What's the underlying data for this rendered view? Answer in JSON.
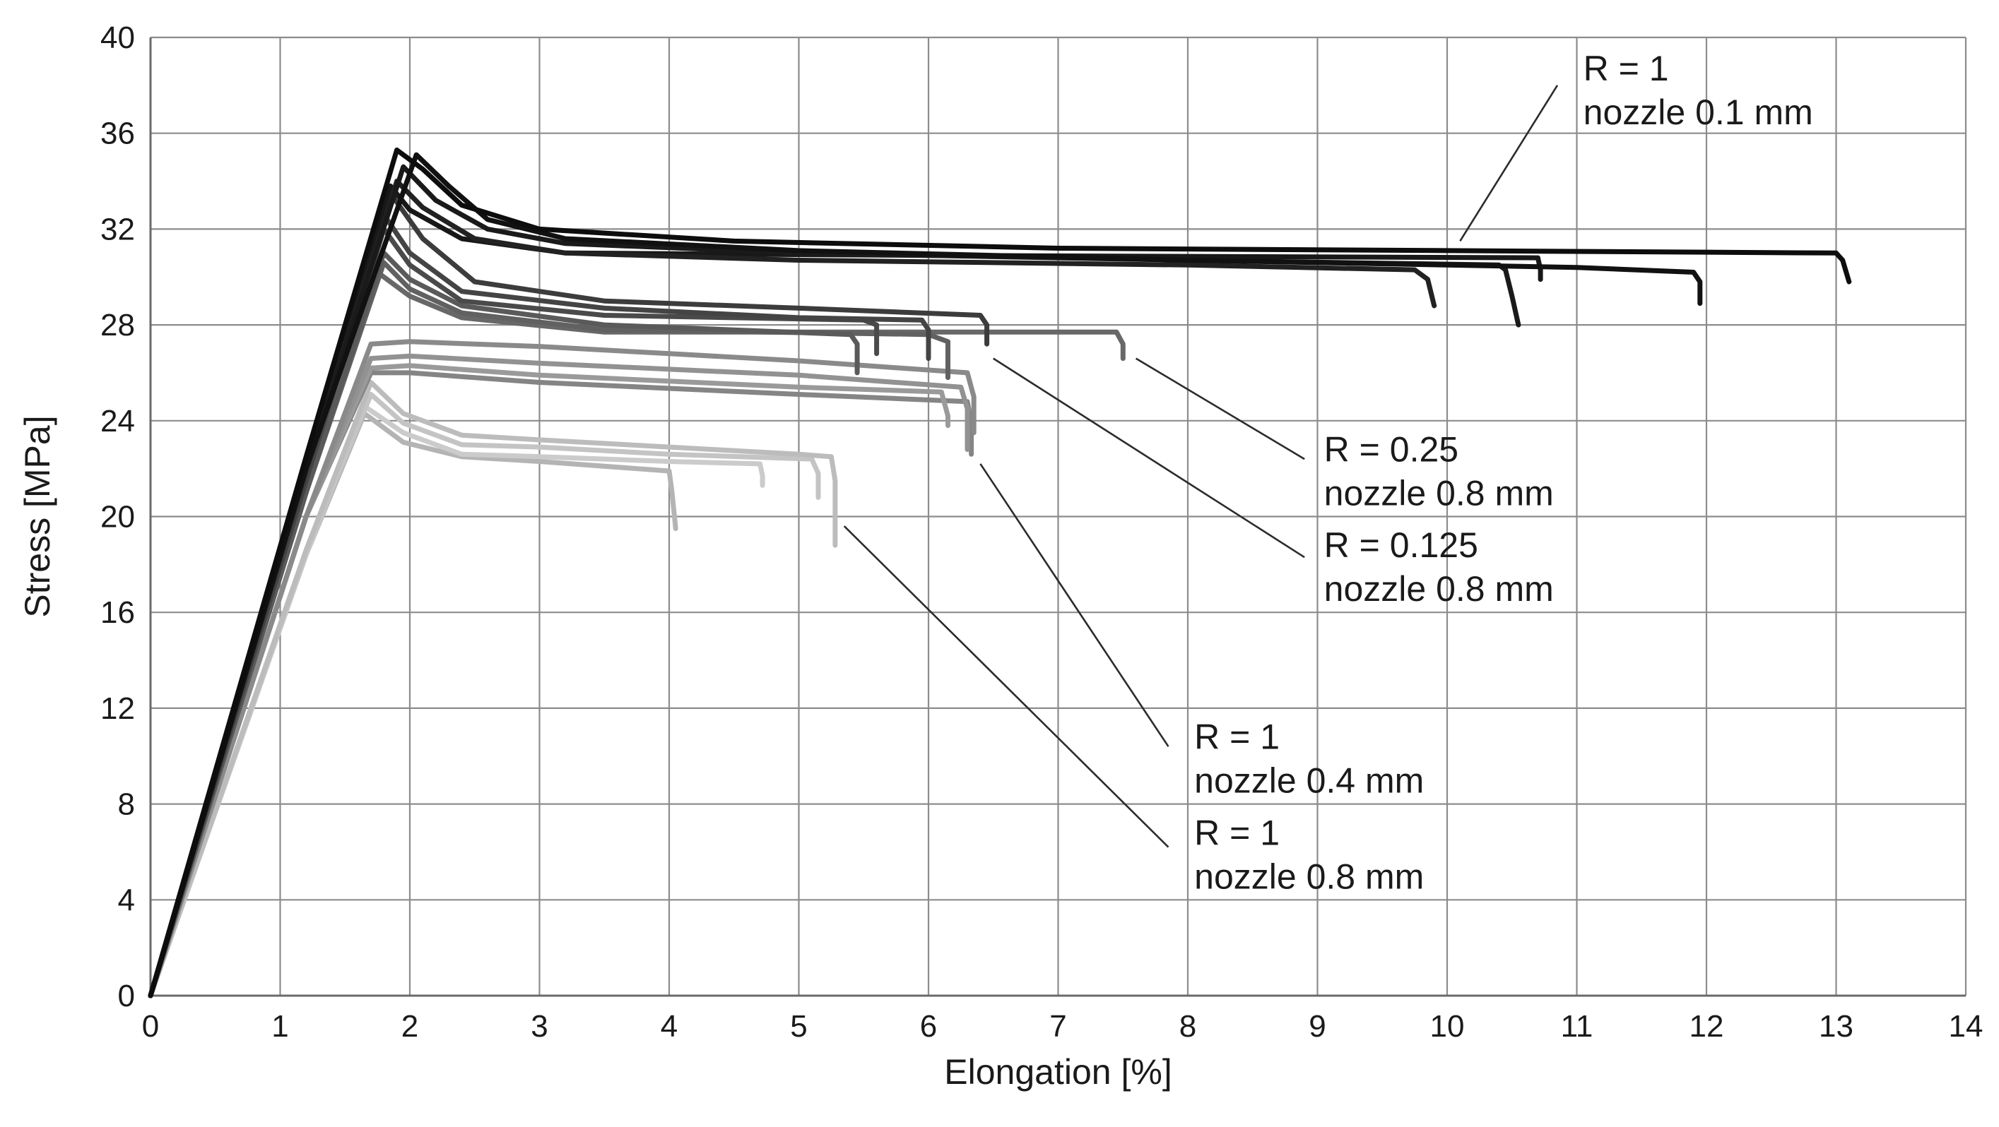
{
  "chart_data": {
    "type": "line",
    "title": "",
    "xlabel": "Elongation [%]",
    "ylabel": "Stress [MPa]",
    "xlim": [
      0,
      14
    ],
    "ylim": [
      0,
      40
    ],
    "xticks": [
      0,
      1,
      2,
      3,
      4,
      5,
      6,
      7,
      8,
      9,
      10,
      11,
      12,
      13,
      14
    ],
    "yticks": [
      0,
      4,
      8,
      12,
      16,
      20,
      24,
      28,
      32,
      36,
      40
    ],
    "grid": true,
    "series": [
      {
        "name": "R = 1 nozzle 0.1 mm - 1",
        "color": "#0d0d0d",
        "points": [
          [
            0,
            0
          ],
          [
            1.2,
            22.5
          ],
          [
            1.9,
            35.3
          ],
          [
            2.1,
            34.5
          ],
          [
            2.4,
            33.0
          ],
          [
            3.0,
            32.0
          ],
          [
            4.5,
            31.5
          ],
          [
            7,
            31.2
          ],
          [
            10,
            31.1
          ],
          [
            13,
            31.0
          ],
          [
            13.05,
            30.7
          ],
          [
            13.1,
            29.8
          ]
        ]
      },
      {
        "name": "R = 1 nozzle 0.1 mm - 2",
        "color": "#111111",
        "points": [
          [
            0,
            0
          ],
          [
            1.2,
            22.0
          ],
          [
            2.05,
            35.1
          ],
          [
            2.3,
            33.8
          ],
          [
            2.6,
            32.4
          ],
          [
            3.2,
            31.6
          ],
          [
            5,
            31.1
          ],
          [
            8,
            30.7
          ],
          [
            11,
            30.4
          ],
          [
            11.9,
            30.2
          ],
          [
            11.95,
            29.8
          ],
          [
            11.95,
            28.9
          ]
        ]
      },
      {
        "name": "R = 1 nozzle 0.1 mm - 3",
        "color": "#1a1a1a",
        "points": [
          [
            0,
            0
          ],
          [
            1.2,
            22.0
          ],
          [
            1.95,
            34.6
          ],
          [
            2.2,
            33.2
          ],
          [
            2.6,
            32.0
          ],
          [
            3.2,
            31.4
          ],
          [
            5,
            31.0
          ],
          [
            8,
            30.7
          ],
          [
            10.4,
            30.5
          ],
          [
            10.45,
            30.3
          ],
          [
            10.5,
            29.2
          ],
          [
            10.55,
            28.0
          ]
        ]
      },
      {
        "name": "R = 1 nozzle 0.1 mm - 4",
        "color": "#222222",
        "points": [
          [
            0,
            0
          ],
          [
            1.2,
            22.0
          ],
          [
            1.9,
            34.0
          ],
          [
            2.1,
            32.9
          ],
          [
            2.5,
            31.6
          ],
          [
            3.2,
            31.0
          ],
          [
            5,
            30.7
          ],
          [
            8,
            30.5
          ],
          [
            9.75,
            30.3
          ],
          [
            9.85,
            29.9
          ],
          [
            9.9,
            28.8
          ]
        ]
      },
      {
        "name": "R = 1 nozzle 0.1 mm - 5",
        "color": "#181818",
        "points": [
          [
            0,
            0
          ],
          [
            1.2,
            22.0
          ],
          [
            1.85,
            33.8
          ],
          [
            2.0,
            32.8
          ],
          [
            2.4,
            31.6
          ],
          [
            3.2,
            31.0
          ],
          [
            6,
            30.9
          ],
          [
            10.7,
            30.8
          ],
          [
            10.72,
            30.3
          ],
          [
            10.72,
            29.9
          ]
        ]
      },
      {
        "name": "R = 0.25 nozzle 0.8 mm - 1",
        "color": "#3c3c3c",
        "points": [
          [
            0,
            0
          ],
          [
            1.2,
            21.8
          ],
          [
            1.85,
            33.5
          ],
          [
            2.1,
            31.6
          ],
          [
            2.5,
            29.8
          ],
          [
            3.5,
            29.0
          ],
          [
            5,
            28.7
          ],
          [
            6.4,
            28.4
          ],
          [
            6.45,
            28.0
          ],
          [
            6.45,
            27.2
          ]
        ]
      },
      {
        "name": "R = 0.25 nozzle 0.8 mm - 2",
        "color": "#444444",
        "points": [
          [
            0,
            0
          ],
          [
            1.2,
            21.5
          ],
          [
            1.8,
            32.6
          ],
          [
            2.0,
            31.0
          ],
          [
            2.4,
            29.4
          ],
          [
            3.5,
            28.7
          ],
          [
            5,
            28.3
          ],
          [
            5.95,
            28.2
          ],
          [
            6.0,
            27.8
          ],
          [
            6.0,
            26.6
          ]
        ]
      },
      {
        "name": "R = 0.25 nozzle 0.8 mm - 3",
        "color": "#4a4a4a",
        "points": [
          [
            0,
            0
          ],
          [
            1.2,
            21.5
          ],
          [
            1.8,
            32.0
          ],
          [
            2.0,
            30.5
          ],
          [
            2.4,
            29.0
          ],
          [
            3.5,
            28.4
          ],
          [
            5.5,
            28.2
          ],
          [
            5.6,
            28.0
          ],
          [
            5.6,
            26.8
          ]
        ]
      },
      {
        "name": "R = 0.125 nozzle 0.8 mm - 1",
        "color": "#5a5a5a",
        "points": [
          [
            0,
            0
          ],
          [
            1.2,
            21.0
          ],
          [
            1.8,
            31.0
          ],
          [
            2.0,
            29.9
          ],
          [
            2.4,
            28.8
          ],
          [
            3.5,
            28.0
          ],
          [
            5.4,
            27.6
          ],
          [
            5.45,
            27.2
          ],
          [
            5.45,
            26.0
          ]
        ]
      },
      {
        "name": "R = 0.125 nozzle 0.8 mm - 2",
        "color": "#616161",
        "points": [
          [
            0,
            0
          ],
          [
            1.2,
            21.0
          ],
          [
            1.8,
            30.6
          ],
          [
            2.0,
            29.5
          ],
          [
            2.4,
            28.5
          ],
          [
            3.5,
            27.8
          ],
          [
            6,
            27.6
          ],
          [
            6.15,
            27.3
          ],
          [
            6.15,
            25.8
          ]
        ]
      },
      {
        "name": "R = 0.125 nozzle 0.8 mm - 3",
        "color": "#686868",
        "points": [
          [
            0,
            0
          ],
          [
            1.2,
            21.0
          ],
          [
            1.75,
            30.2
          ],
          [
            2.0,
            29.2
          ],
          [
            2.4,
            28.3
          ],
          [
            3.5,
            27.7
          ],
          [
            6,
            27.7
          ],
          [
            7.45,
            27.7
          ],
          [
            7.5,
            27.2
          ],
          [
            7.5,
            26.6
          ]
        ]
      },
      {
        "name": "R = 1 nozzle 0.4 mm - 1",
        "color": "#8a8a8a",
        "points": [
          [
            0,
            0
          ],
          [
            1.2,
            20.0
          ],
          [
            1.7,
            27.2
          ],
          [
            2.0,
            27.3
          ],
          [
            3,
            27.1
          ],
          [
            4,
            26.8
          ],
          [
            5,
            26.5
          ],
          [
            6.3,
            26.0
          ],
          [
            6.35,
            25.0
          ],
          [
            6.35,
            23.5
          ]
        ]
      },
      {
        "name": "R = 1 nozzle 0.4 mm - 2",
        "color": "#929292",
        "points": [
          [
            0,
            0
          ],
          [
            1.2,
            20.0
          ],
          [
            1.7,
            26.6
          ],
          [
            2.0,
            26.7
          ],
          [
            3,
            26.4
          ],
          [
            5,
            25.9
          ],
          [
            6.25,
            25.4
          ],
          [
            6.3,
            24.5
          ],
          [
            6.3,
            22.8
          ]
        ]
      },
      {
        "name": "R = 1 nozzle 0.4 mm - 3",
        "color": "#9a9a9a",
        "points": [
          [
            0,
            0
          ],
          [
            1.2,
            20.0
          ],
          [
            1.7,
            26.2
          ],
          [
            2.0,
            26.3
          ],
          [
            3,
            25.9
          ],
          [
            5,
            25.4
          ],
          [
            6.1,
            25.2
          ],
          [
            6.15,
            24.2
          ],
          [
            6.15,
            23.8
          ]
        ]
      },
      {
        "name": "R = 1 nozzle 0.4 mm - 4",
        "color": "#858585",
        "points": [
          [
            0,
            0
          ],
          [
            1.2,
            20.0
          ],
          [
            1.7,
            26.0
          ],
          [
            2.0,
            26.0
          ],
          [
            3,
            25.6
          ],
          [
            5,
            25.1
          ],
          [
            6.3,
            24.8
          ],
          [
            6.33,
            23.9
          ],
          [
            6.33,
            22.6
          ]
        ]
      },
      {
        "name": "R = 1 nozzle 0.8 mm - 1",
        "color": "#bcbcbc",
        "points": [
          [
            0,
            0
          ],
          [
            1.2,
            18.6
          ],
          [
            1.7,
            25.6
          ],
          [
            1.95,
            24.3
          ],
          [
            2.4,
            23.4
          ],
          [
            3,
            23.2
          ],
          [
            4,
            22.9
          ],
          [
            5,
            22.6
          ],
          [
            5.25,
            22.5
          ],
          [
            5.28,
            21.5
          ],
          [
            5.28,
            18.8
          ]
        ]
      },
      {
        "name": "R = 1 nozzle 0.8 mm - 2",
        "color": "#c4c4c4",
        "points": [
          [
            0,
            0
          ],
          [
            1.2,
            18.5
          ],
          [
            1.7,
            25.1
          ],
          [
            1.95,
            23.9
          ],
          [
            2.4,
            23.0
          ],
          [
            3,
            22.9
          ],
          [
            4,
            22.6
          ],
          [
            5.1,
            22.4
          ],
          [
            5.15,
            21.8
          ],
          [
            5.15,
            20.8
          ]
        ]
      },
      {
        "name": "R = 1 nozzle 0.8 mm - 3",
        "color": "#cbcbcb",
        "points": [
          [
            0,
            0
          ],
          [
            1.2,
            18.4
          ],
          [
            1.65,
            24.6
          ],
          [
            1.95,
            23.5
          ],
          [
            2.4,
            22.6
          ],
          [
            3,
            22.5
          ],
          [
            4,
            22.3
          ],
          [
            4.7,
            22.2
          ],
          [
            4.72,
            21.7
          ],
          [
            4.72,
            21.3
          ]
        ]
      },
      {
        "name": "R = 1 nozzle 0.8 mm - 4",
        "color": "#b4b4b4",
        "points": [
          [
            0,
            0
          ],
          [
            1.2,
            18.4
          ],
          [
            1.65,
            24.3
          ],
          [
            1.95,
            23.1
          ],
          [
            2.4,
            22.5
          ],
          [
            3,
            22.3
          ],
          [
            4,
            21.9
          ],
          [
            4.02,
            21.1
          ],
          [
            4.05,
            19.5
          ]
        ]
      }
    ],
    "annotations": [
      {
        "lines": [
          "R = 1",
          "nozzle 0.1 mm"
        ],
        "text_pos": [
          11.05,
          38.2
        ],
        "line_from": [
          10.1,
          31.5
        ],
        "line_to": [
          10.85,
          38.0
        ]
      },
      {
        "lines": [
          "R = 0.25",
          "nozzle 0.8 mm"
        ],
        "text_pos": [
          9.05,
          22.3
        ],
        "line_from": [
          7.6,
          26.6
        ],
        "line_to": [
          8.9,
          22.4
        ]
      },
      {
        "lines": [
          "R = 0.125",
          "nozzle 0.8 mm"
        ],
        "text_pos": [
          9.05,
          18.3
        ],
        "line_from": [
          6.5,
          26.6
        ],
        "line_to": [
          8.9,
          18.3
        ]
      },
      {
        "lines": [
          "R = 1",
          "nozzle 0.4 mm"
        ],
        "text_pos": [
          8.05,
          10.3
        ],
        "line_from": [
          6.4,
          22.2
        ],
        "line_to": [
          7.85,
          10.4
        ]
      },
      {
        "lines": [
          "R = 1",
          "nozzle 0.8 mm"
        ],
        "text_pos": [
          8.05,
          6.3
        ],
        "line_from": [
          5.35,
          19.6
        ],
        "line_to": [
          7.85,
          6.2
        ]
      }
    ]
  }
}
